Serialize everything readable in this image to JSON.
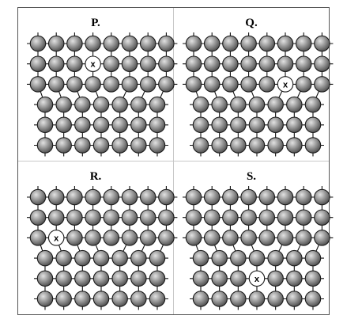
{
  "figure": {
    "panels": [
      {
        "label": "P.",
        "defect_label": "x",
        "rows": 6,
        "cols": 7,
        "extra_plane_end_row": 2,
        "dislocation_col": 3.5,
        "defect": {
          "row": 1,
          "col": 3
        }
      },
      {
        "label": "Q.",
        "defect_label": "x",
        "rows": 6,
        "cols": 7,
        "extra_plane_end_row": 2,
        "dislocation_col": 3.5,
        "defect": {
          "row": 2,
          "col": 5
        }
      },
      {
        "label": "R.",
        "defect_label": "x",
        "rows": 6,
        "cols": 7,
        "extra_plane_end_row": 2,
        "dislocation_col": 3.5,
        "defect": {
          "row": 2,
          "col": 1
        }
      },
      {
        "label": "S.",
        "defect_label": "x",
        "rows": 6,
        "cols": 7,
        "extra_plane_end_row": 2,
        "dislocation_col": 3.5,
        "defect": {
          "row": 4,
          "col": 3
        }
      }
    ],
    "colors": {
      "atom_light": "#e2e2e2",
      "atom_dark": "#4f4f4f",
      "bond": "#111111",
      "vacancy_fill": "#ffffff",
      "border": "#555555",
      "divider": "#c8c8c8"
    }
  }
}
